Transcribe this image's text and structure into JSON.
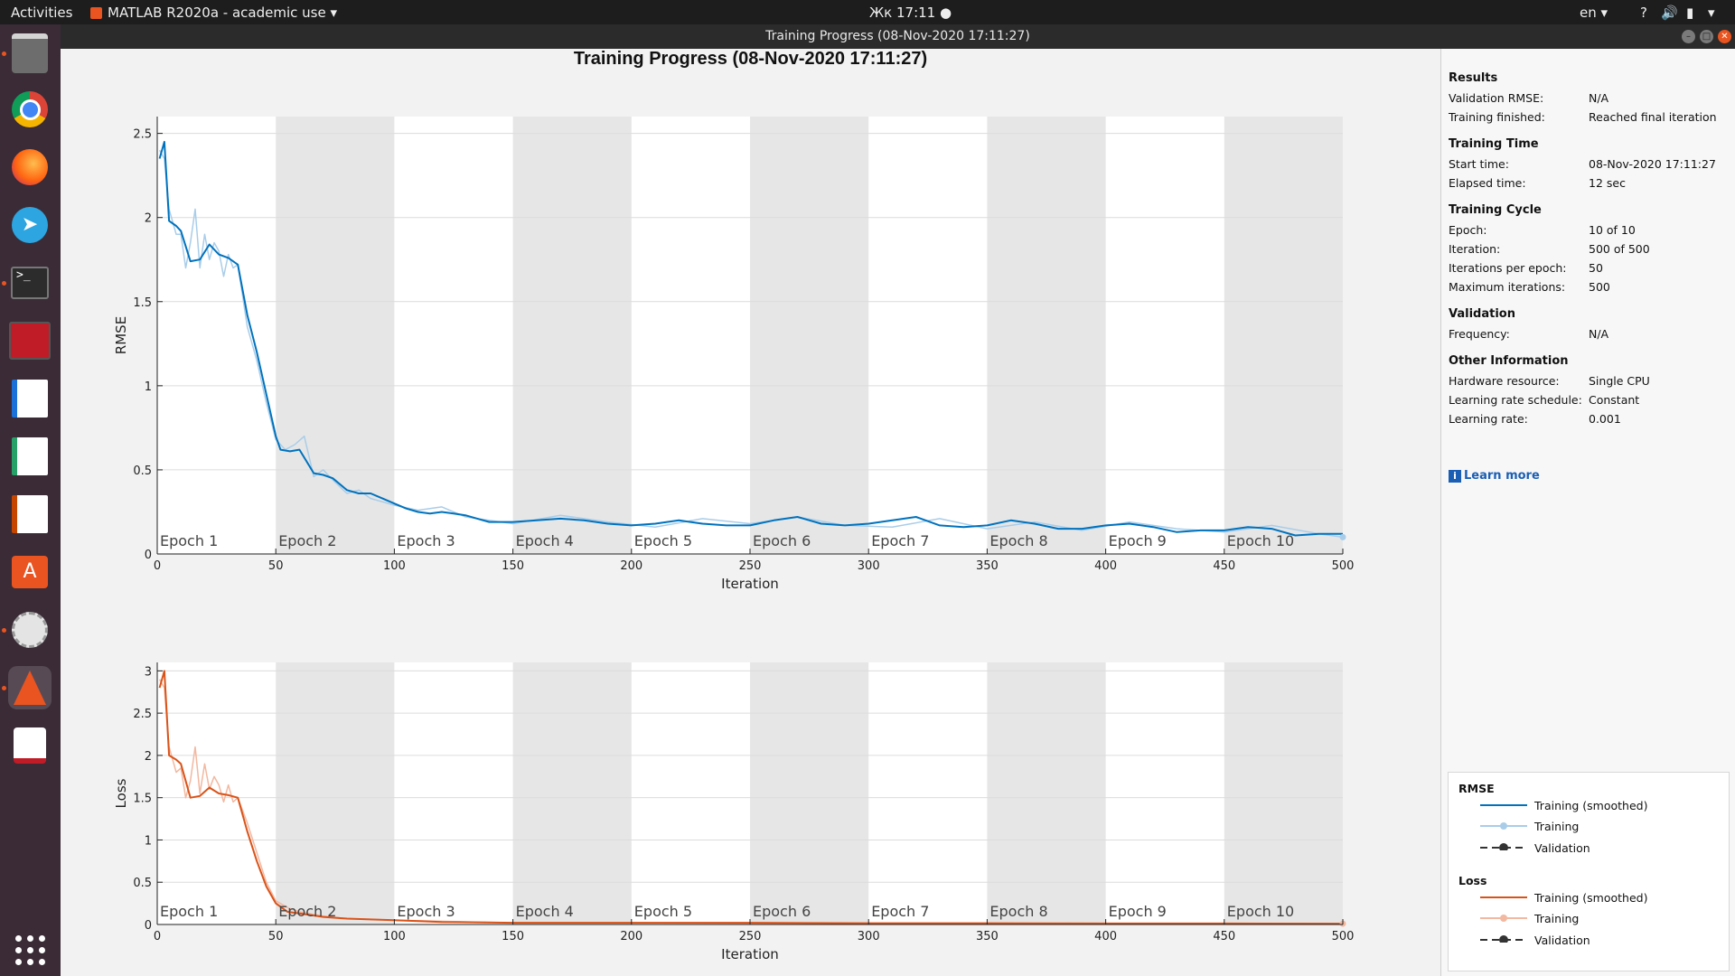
{
  "topbar": {
    "activities": "Activities",
    "app_menu": "MATLAB R2020a - academic use",
    "clock": "Жк 17:11",
    "lang": "en",
    "help": "?"
  },
  "window": {
    "title": "Training Progress (08-Nov-2020 17:11:27)"
  },
  "dock": {
    "items": [
      "files-icon",
      "chrome-icon",
      "firefox-icon",
      "telegram-icon",
      "terminal-icon",
      "calculator-icon",
      "writer-icon",
      "calc-icon",
      "impress-icon",
      "software-center-icon",
      "settings-tools-icon",
      "matlab-icon",
      "evince-icon",
      "app-grid-icon"
    ]
  },
  "plot": {
    "title": "Training Progress (08-Nov-2020 17:11:27)",
    "epoch_labels": [
      "Epoch 1",
      "Epoch 2",
      "Epoch 3",
      "Epoch 4",
      "Epoch 5",
      "Epoch 6",
      "Epoch 7",
      "Epoch 8",
      "Epoch 9",
      "Epoch 10"
    ]
  },
  "results": {
    "header": "Results",
    "validation_rmse_label": "Validation RMSE:",
    "validation_rmse_value": "N/A",
    "training_finished_label": "Training finished:",
    "training_finished_value": "Reached final iteration"
  },
  "training_time": {
    "header": "Training Time",
    "start_label": "Start time:",
    "start_value": "08-Nov-2020 17:11:27",
    "elapsed_label": "Elapsed time:",
    "elapsed_value": "12 sec"
  },
  "training_cycle": {
    "header": "Training Cycle",
    "epoch_label": "Epoch:",
    "epoch_value": "10 of 10",
    "iteration_label": "Iteration:",
    "iteration_value": "500 of 500",
    "ipe_label": "Iterations per epoch:",
    "ipe_value": "50",
    "maxit_label": "Maximum iterations:",
    "maxit_value": "500"
  },
  "validation": {
    "header": "Validation",
    "freq_label": "Frequency:",
    "freq_value": "N/A"
  },
  "other_info": {
    "header": "Other Information",
    "hw_label": "Hardware resource:",
    "hw_value": "Single CPU",
    "lrs_label": "Learning rate schedule:",
    "lrs_value": "Constant",
    "lr_label": "Learning rate:",
    "lr_value": "0.001"
  },
  "learn_more": "Learn more",
  "legend": {
    "rmse_header": "RMSE",
    "loss_header": "Loss",
    "training_smoothed": "Training (smoothed)",
    "training": "Training",
    "validation": "Validation"
  },
  "colors": {
    "rmse": "#0072bd",
    "rmse_light": "#a9cde9",
    "loss": "#d95319",
    "loss_light": "#f2b8a0",
    "epoch_shade": "#e6e6e6"
  },
  "chart_data": [
    {
      "type": "line",
      "title": "",
      "xlabel": "Iteration",
      "ylabel": "RMSE",
      "xlim": [
        0,
        500
      ],
      "ylim": [
        0,
        2.6
      ],
      "xticks": [
        0,
        50,
        100,
        150,
        200,
        250,
        300,
        350,
        400,
        450,
        500
      ],
      "yticks": [
        0,
        0.5,
        1,
        1.5,
        2,
        2.5
      ],
      "ytick_labels": [
        "0",
        "0.5",
        "1",
        "1.5",
        "2",
        "2.5"
      ],
      "series": [
        {
          "name": "Training (smoothed)",
          "x": [
            1,
            3,
            5,
            8,
            10,
            14,
            18,
            22,
            26,
            30,
            34,
            38,
            42,
            46,
            50,
            52,
            56,
            60,
            66,
            70,
            74,
            80,
            85,
            90,
            95,
            100,
            105,
            110,
            115,
            120,
            125,
            130,
            135,
            140,
            145,
            150,
            160,
            170,
            180,
            190,
            200,
            210,
            220,
            230,
            240,
            250,
            260,
            270,
            280,
            290,
            300,
            310,
            320,
            330,
            340,
            350,
            360,
            370,
            380,
            390,
            400,
            410,
            420,
            430,
            440,
            450,
            460,
            470,
            480,
            490,
            500
          ],
          "y": [
            2.35,
            2.45,
            1.98,
            1.95,
            1.92,
            1.74,
            1.75,
            1.84,
            1.78,
            1.76,
            1.72,
            1.42,
            1.2,
            0.95,
            0.7,
            0.62,
            0.61,
            0.62,
            0.48,
            0.47,
            0.45,
            0.38,
            0.36,
            0.36,
            0.33,
            0.3,
            0.27,
            0.25,
            0.24,
            0.25,
            0.24,
            0.23,
            0.21,
            0.19,
            0.19,
            0.19,
            0.2,
            0.21,
            0.2,
            0.18,
            0.17,
            0.18,
            0.2,
            0.18,
            0.17,
            0.17,
            0.2,
            0.22,
            0.18,
            0.17,
            0.18,
            0.2,
            0.22,
            0.17,
            0.16,
            0.17,
            0.2,
            0.18,
            0.15,
            0.15,
            0.17,
            0.18,
            0.16,
            0.13,
            0.14,
            0.14,
            0.16,
            0.15,
            0.11,
            0.12,
            0.12
          ]
        },
        {
          "name": "Training",
          "x": [
            1,
            3,
            5,
            8,
            10,
            12,
            14,
            16,
            18,
            20,
            22,
            24,
            26,
            28,
            30,
            32,
            34,
            38,
            42,
            46,
            50,
            54,
            58,
            62,
            66,
            70,
            74,
            80,
            85,
            90,
            95,
            100,
            110,
            120,
            130,
            140,
            150,
            170,
            190,
            210,
            230,
            250,
            270,
            290,
            310,
            330,
            350,
            370,
            390,
            410,
            430,
            450,
            470,
            490,
            500
          ],
          "y": [
            2.4,
            2.35,
            2.05,
            1.9,
            1.9,
            1.7,
            1.85,
            2.05,
            1.7,
            1.9,
            1.75,
            1.85,
            1.8,
            1.65,
            1.78,
            1.7,
            1.72,
            1.35,
            1.15,
            0.9,
            0.68,
            0.62,
            0.65,
            0.7,
            0.46,
            0.5,
            0.44,
            0.36,
            0.38,
            0.33,
            0.31,
            0.29,
            0.26,
            0.28,
            0.22,
            0.2,
            0.18,
            0.23,
            0.19,
            0.16,
            0.21,
            0.18,
            0.22,
            0.17,
            0.16,
            0.21,
            0.15,
            0.19,
            0.14,
            0.19,
            0.15,
            0.13,
            0.17,
            0.12,
            0.1
          ]
        }
      ]
    },
    {
      "type": "line",
      "title": "",
      "xlabel": "Iteration",
      "ylabel": "Loss",
      "xlim": [
        0,
        500
      ],
      "ylim": [
        0,
        3.1
      ],
      "xticks": [
        0,
        50,
        100,
        150,
        200,
        250,
        300,
        350,
        400,
        450,
        500
      ],
      "yticks": [
        0,
        0.5,
        1,
        1.5,
        2,
        2.5,
        3
      ],
      "ytick_labels": [
        "0",
        "0.5",
        "1",
        "1.5",
        "2",
        "2.5",
        "3"
      ],
      "series": [
        {
          "name": "Training (smoothed)",
          "x": [
            1,
            3,
            5,
            8,
            10,
            14,
            18,
            22,
            26,
            30,
            34,
            38,
            42,
            46,
            50,
            55,
            60,
            70,
            80,
            90,
            100,
            120,
            150,
            200,
            250,
            300,
            350,
            400,
            450,
            500
          ],
          "y": [
            2.8,
            3.0,
            2.0,
            1.95,
            1.9,
            1.5,
            1.52,
            1.62,
            1.55,
            1.53,
            1.5,
            1.1,
            0.75,
            0.45,
            0.25,
            0.15,
            0.13,
            0.09,
            0.07,
            0.06,
            0.05,
            0.03,
            0.02,
            0.02,
            0.02,
            0.015,
            0.015,
            0.012,
            0.012,
            0.01
          ]
        },
        {
          "name": "Training",
          "x": [
            1,
            3,
            5,
            8,
            10,
            12,
            14,
            16,
            18,
            20,
            22,
            24,
            26,
            28,
            30,
            32,
            34,
            38,
            42,
            46,
            50,
            55,
            60,
            70,
            80,
            90,
            100,
            150,
            200,
            300,
            400,
            500
          ],
          "y": [
            2.9,
            2.8,
            2.1,
            1.8,
            1.85,
            1.5,
            1.7,
            2.1,
            1.55,
            1.9,
            1.6,
            1.75,
            1.65,
            1.45,
            1.65,
            1.45,
            1.5,
            1.2,
            0.85,
            0.5,
            0.28,
            0.2,
            0.15,
            0.1,
            0.07,
            0.06,
            0.05,
            0.02,
            0.02,
            0.01,
            0.01,
            0.01
          ]
        }
      ]
    }
  ]
}
